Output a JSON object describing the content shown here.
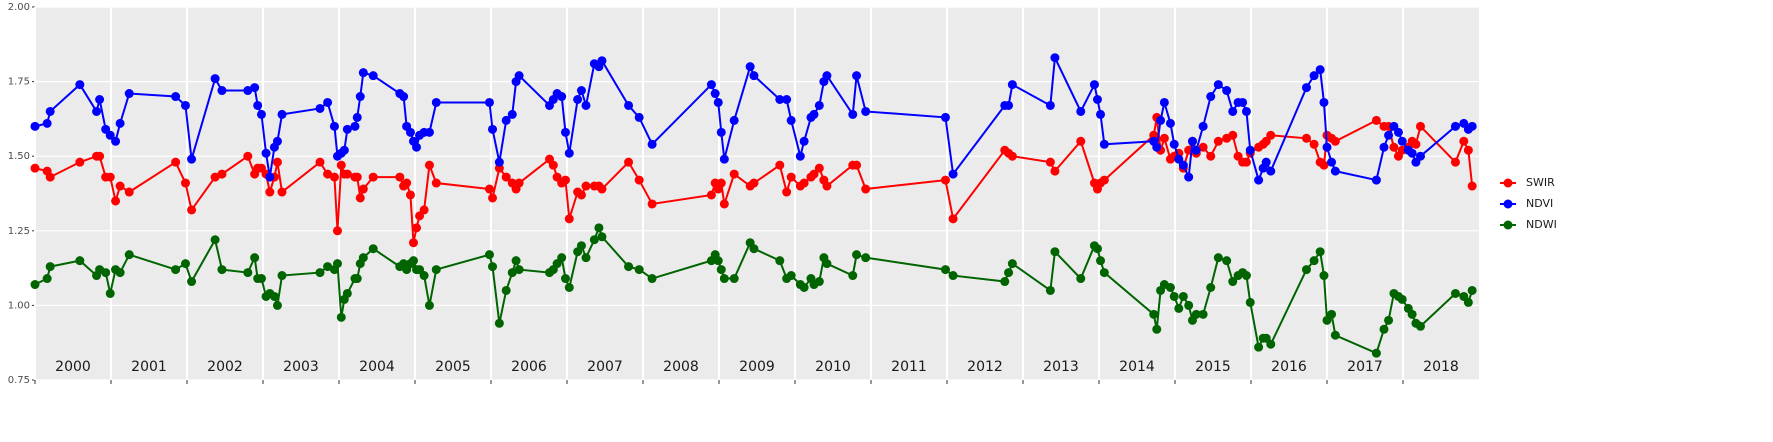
{
  "chart_data": {
    "type": "line",
    "x": [
      2000.0,
      2000.16,
      2000.2,
      2000.59,
      2000.81,
      2000.85,
      2000.93,
      2000.99,
      2001.06,
      2001.12,
      2001.24,
      2001.85,
      2001.98,
      2002.06,
      2002.37,
      2002.46,
      2002.8,
      2002.89,
      2002.93,
      2002.98,
      2003.04,
      2003.09,
      2003.15,
      2003.19,
      2003.25,
      2003.75,
      2003.85,
      2003.94,
      2003.98,
      2004.03,
      2004.07,
      2004.11,
      2004.21,
      2004.24,
      2004.28,
      2004.32,
      2004.45,
      2004.8,
      2004.85,
      2004.89,
      2004.94,
      2004.98,
      2005.02,
      2005.06,
      2005.12,
      2005.19,
      2005.28,
      2005.98,
      2006.02,
      2006.11,
      2006.2,
      2006.28,
      2006.33,
      2006.37,
      2006.77,
      2006.82,
      2006.87,
      2006.93,
      2006.98,
      2007.03,
      2007.14,
      2007.19,
      2007.25,
      2007.36,
      2007.42,
      2007.46,
      2007.81,
      2007.95,
      2008.12,
      2008.9,
      2008.95,
      2008.99,
      2009.03,
      2009.07,
      2009.2,
      2009.41,
      2009.46,
      2009.8,
      2009.89,
      2009.95,
      2010.07,
      2010.12,
      2010.21,
      2010.25,
      2010.32,
      2010.38,
      2010.42,
      2010.76,
      2010.81,
      2010.93,
      2011.98,
      2012.08,
      2012.76,
      2012.81,
      2012.86,
      2013.36,
      2013.42,
      2013.76,
      2013.94,
      2013.98,
      2014.02,
      2014.07,
      2014.72,
      2014.76,
      2014.81,
      2014.86,
      2014.94,
      2014.99,
      2015.05,
      2015.11,
      2015.18,
      2015.23,
      2015.28,
      2015.37,
      2015.47,
      2015.57,
      2015.68,
      2015.76,
      2015.83,
      2015.89,
      2015.94,
      2015.99,
      2016.1,
      2016.16,
      2016.2,
      2016.26,
      2016.73,
      2016.83,
      2016.91,
      2016.96,
      2017.0,
      2017.06,
      2017.11,
      2017.65,
      2017.75,
      2017.81,
      2017.88,
      2017.94,
      2017.99,
      2018.07,
      2018.12,
      2018.17,
      2018.23,
      2018.69,
      2018.8,
      2018.86,
      2018.91
    ],
    "series": [
      {
        "name": "SWIR",
        "color": "#ff0000",
        "values": [
          1.46,
          1.45,
          1.43,
          1.48,
          1.5,
          1.5,
          1.43,
          1.43,
          1.35,
          1.4,
          1.38,
          1.48,
          1.41,
          1.32,
          1.43,
          1.44,
          1.5,
          1.44,
          1.46,
          1.46,
          1.44,
          1.38,
          1.43,
          1.48,
          1.38,
          1.48,
          1.44,
          1.43,
          1.25,
          1.47,
          1.44,
          1.44,
          1.43,
          1.43,
          1.36,
          1.39,
          1.43,
          1.43,
          1.4,
          1.41,
          1.37,
          1.21,
          1.26,
          1.3,
          1.32,
          1.47,
          1.41,
          1.39,
          1.36,
          1.46,
          1.43,
          1.41,
          1.39,
          1.41,
          1.49,
          1.47,
          1.43,
          1.41,
          1.42,
          1.29,
          1.38,
          1.37,
          1.4,
          1.4,
          1.4,
          1.39,
          1.48,
          1.42,
          1.34,
          1.37,
          1.41,
          1.39,
          1.41,
          1.34,
          1.44,
          1.4,
          1.41,
          1.47,
          1.38,
          1.43,
          1.4,
          1.41,
          1.43,
          1.44,
          1.46,
          1.42,
          1.4,
          1.47,
          1.47,
          1.39,
          1.42,
          1.29,
          1.52,
          1.51,
          1.5,
          1.48,
          1.45,
          1.55,
          1.41,
          1.39,
          1.41,
          1.42,
          1.57,
          1.63,
          1.52,
          1.56,
          1.49,
          1.5,
          1.51,
          1.46,
          1.52,
          1.55,
          1.51,
          1.53,
          1.5,
          1.55,
          1.56,
          1.57,
          1.5,
          1.48,
          1.48,
          1.51,
          1.53,
          1.54,
          1.55,
          1.57,
          1.56,
          1.54,
          1.48,
          1.47,
          1.57,
          1.56,
          1.55,
          1.62,
          1.6,
          1.6,
          1.53,
          1.5,
          1.52,
          1.53,
          1.55,
          1.54,
          1.6,
          1.48,
          1.55,
          1.52,
          1.4
        ]
      },
      {
        "name": "NDVI",
        "color": "#0000ff",
        "values": [
          1.6,
          1.61,
          1.65,
          1.74,
          1.65,
          1.69,
          1.59,
          1.57,
          1.55,
          1.61,
          1.71,
          1.7,
          1.67,
          1.49,
          1.76,
          1.72,
          1.72,
          1.73,
          1.67,
          1.64,
          1.51,
          1.43,
          1.53,
          1.55,
          1.64,
          1.66,
          1.68,
          1.6,
          1.5,
          1.51,
          1.52,
          1.59,
          1.6,
          1.63,
          1.7,
          1.78,
          1.77,
          1.71,
          1.7,
          1.6,
          1.58,
          1.55,
          1.53,
          1.57,
          1.58,
          1.58,
          1.68,
          1.68,
          1.59,
          1.48,
          1.62,
          1.64,
          1.75,
          1.77,
          1.67,
          1.69,
          1.71,
          1.7,
          1.58,
          1.51,
          1.69,
          1.72,
          1.67,
          1.81,
          1.8,
          1.82,
          1.67,
          1.63,
          1.54,
          1.74,
          1.71,
          1.68,
          1.58,
          1.49,
          1.62,
          1.8,
          1.77,
          1.69,
          1.69,
          1.62,
          1.5,
          1.55,
          1.63,
          1.64,
          1.67,
          1.75,
          1.77,
          1.64,
          1.77,
          1.65,
          1.63,
          1.44,
          1.67,
          1.67,
          1.74,
          1.67,
          1.83,
          1.65,
          1.74,
          1.69,
          1.64,
          1.54,
          1.55,
          1.53,
          1.62,
          1.68,
          1.61,
          1.54,
          1.49,
          1.47,
          1.43,
          1.55,
          1.52,
          1.6,
          1.7,
          1.74,
          1.72,
          1.65,
          1.68,
          1.68,
          1.65,
          1.52,
          1.42,
          1.46,
          1.48,
          1.45,
          1.73,
          1.77,
          1.79,
          1.68,
          1.53,
          1.48,
          1.45,
          1.42,
          1.53,
          1.57,
          1.6,
          1.58,
          1.55,
          1.52,
          1.51,
          1.48,
          1.5,
          1.6,
          1.61,
          1.59,
          1.6
        ]
      },
      {
        "name": "NDWI",
        "color": "#006400",
        "values": [
          1.07,
          1.09,
          1.13,
          1.15,
          1.1,
          1.12,
          1.11,
          1.04,
          1.12,
          1.11,
          1.17,
          1.12,
          1.14,
          1.08,
          1.22,
          1.12,
          1.11,
          1.16,
          1.09,
          1.09,
          1.03,
          1.04,
          1.03,
          1.0,
          1.1,
          1.11,
          1.13,
          1.12,
          1.14,
          0.96,
          1.02,
          1.04,
          1.09,
          1.09,
          1.14,
          1.16,
          1.19,
          1.13,
          1.14,
          1.12,
          1.14,
          1.15,
          1.12,
          1.12,
          1.1,
          1.0,
          1.12,
          1.17,
          1.13,
          0.94,
          1.05,
          1.11,
          1.15,
          1.12,
          1.11,
          1.12,
          1.14,
          1.16,
          1.09,
          1.06,
          1.18,
          1.2,
          1.16,
          1.22,
          1.26,
          1.23,
          1.13,
          1.12,
          1.09,
          1.15,
          1.17,
          1.15,
          1.12,
          1.09,
          1.09,
          1.21,
          1.19,
          1.15,
          1.09,
          1.1,
          1.07,
          1.06,
          1.09,
          1.07,
          1.08,
          1.16,
          1.14,
          1.1,
          1.17,
          1.16,
          1.12,
          1.1,
          1.08,
          1.11,
          1.14,
          1.05,
          1.18,
          1.09,
          1.2,
          1.19,
          1.15,
          1.11,
          0.97,
          0.92,
          1.05,
          1.07,
          1.06,
          1.03,
          0.99,
          1.03,
          1.0,
          0.95,
          0.97,
          0.97,
          1.06,
          1.16,
          1.15,
          1.08,
          1.1,
          1.11,
          1.1,
          1.01,
          0.86,
          0.89,
          0.89,
          0.87,
          1.12,
          1.15,
          1.18,
          1.1,
          0.95,
          0.97,
          0.9,
          0.84,
          0.92,
          0.95,
          1.04,
          1.03,
          1.02,
          0.99,
          0.97,
          0.94,
          0.93,
          1.04,
          1.03,
          1.01,
          1.05
        ]
      }
    ],
    "xlim": [
      2000,
      2019
    ],
    "xticks": [
      2000,
      2001,
      2002,
      2003,
      2004,
      2005,
      2006,
      2007,
      2008,
      2009,
      2010,
      2011,
      2012,
      2013,
      2014,
      2015,
      2016,
      2017,
      2018
    ],
    "ylim": [
      0.75,
      2.0
    ],
    "yticks": [
      {
        "value": 0.75,
        "label": "0.75"
      },
      {
        "value": 1.0,
        "label": "1.00"
      },
      {
        "value": 1.25,
        "label": "1.25"
      },
      {
        "value": 1.5,
        "label": "1.50"
      },
      {
        "value": 1.75,
        "label": "1.75"
      },
      {
        "value": 2.0,
        "label": "2.00"
      }
    ],
    "grid": true,
    "legend": "right"
  }
}
